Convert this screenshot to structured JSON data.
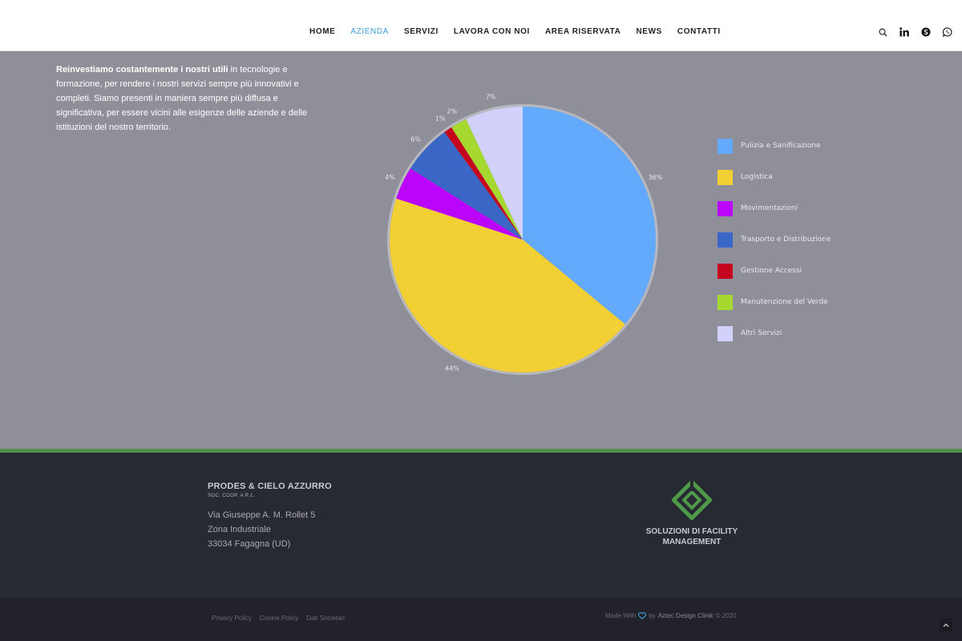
{
  "nav": {
    "items": [
      {
        "label": "HOME",
        "active": false
      },
      {
        "label": "AZIENDA",
        "active": true
      },
      {
        "label": "SERVIZI",
        "active": false
      },
      {
        "label": "LAVORA CON NOI",
        "active": false
      },
      {
        "label": "AREA RISERVATA",
        "active": false
      },
      {
        "label": "NEWS",
        "active": false
      },
      {
        "label": "CONTATTI",
        "active": false
      }
    ],
    "active_color": "#3a9fd8"
  },
  "social": [
    "search-icon",
    "linkedin-icon",
    "skype-icon",
    "whatsapp-icon"
  ],
  "intro": {
    "bold": "Reinvestiamo costantemente i nostri utili",
    "text": " in tecnologie e formazione, per rendere i nostri servizi sempre più innovativi e completi. Siamo presenti in maniera sempre più diffusa e significativa, per essere vicini alle esigenze delle aziende e delle istituzioni del nostro territorio."
  },
  "chart_data": {
    "type": "pie",
    "categories": [
      "Pulizia e Sanificazione",
      "Logistica",
      "Movimentazioni",
      "Trasporto e Distribuzione",
      "Gestione Accessi",
      "Manutenzione del Verde",
      "Altri Servizi"
    ],
    "values": [
      36,
      44,
      4,
      6,
      1,
      2,
      7
    ],
    "labels": [
      "36%",
      "44%",
      "4%",
      "6%",
      "1%",
      "2%",
      "7%"
    ],
    "colors": [
      "#63aafc",
      "#f2cf33",
      "#bb05fb",
      "#3a66c5",
      "#c4061f",
      "#a6d930",
      "#d2d1fc"
    ],
    "legend": "right"
  },
  "footer": {
    "company_name": "PRODES & CIELO AZZURRO",
    "company_type": "SOC. COOP. A R.L.",
    "address": [
      "Via Giuseppe A. M. Rollet 5",
      "Zona Industriale",
      "33034 Fagagna (UD)"
    ],
    "tagline_1": "SOLUZIONI DI FACILITY",
    "tagline_2": "MANAGEMENT",
    "accent": "#4e8f4a"
  },
  "bottom": {
    "links": [
      "Privacy Policy",
      "Cookie Policy",
      "Dati Societari"
    ],
    "made_with": "Made With",
    "by": "by",
    "brand": "Aztec Design Clinik",
    "year": "© 2020"
  }
}
